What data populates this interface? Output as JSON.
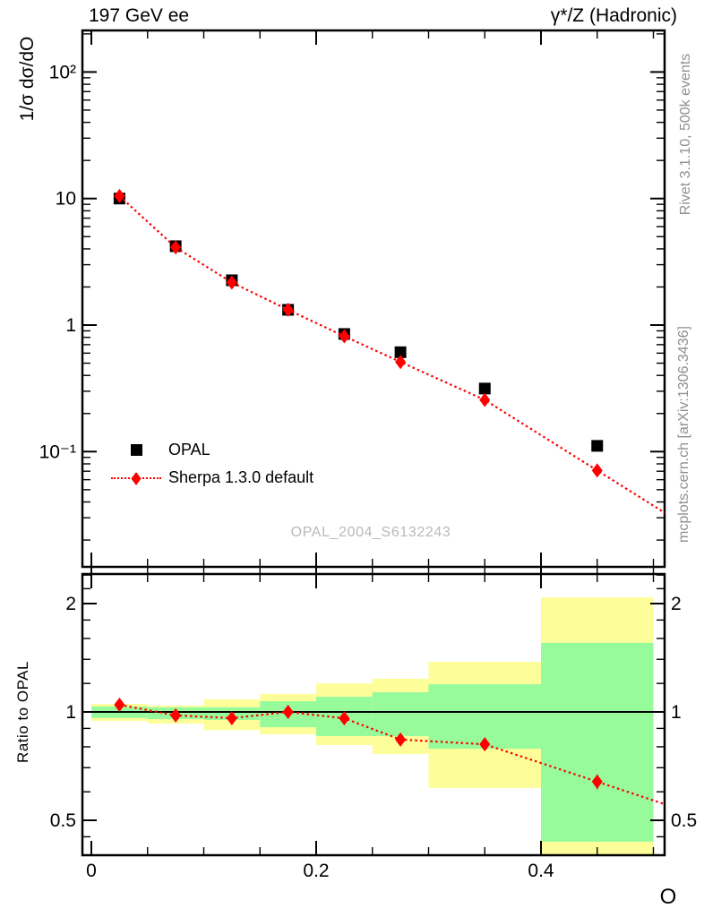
{
  "header": {
    "left": "197 GeV ee",
    "right": "γ*/Z (Hadronic)"
  },
  "side_labels": {
    "rivet": "Rivet 3.1.10,  500k events",
    "mcplots": "mcplots.cern.ch [arXiv:1306.3436]"
  },
  "watermark": "OPAL_2004_S6132243",
  "axis_titles": {
    "main_y": "1/σ dσ/dO",
    "ratio_y": "Ratio to OPAL",
    "x": "O"
  },
  "legend": {
    "opal": "OPAL",
    "sherpa": "Sherpa 1.3.0 default"
  },
  "colors": {
    "data": "#000000",
    "mc": "#ff0000",
    "yellow_band": "#fdfd9a",
    "green_band": "#97fb9c",
    "gray_text": "#8f8f8f",
    "watermark": "#b9b9b9"
  },
  "chart_data": {
    "main": {
      "type": "scatter",
      "title": "197 GeV ee — γ*/Z (Hadronic)",
      "xlabel": "O",
      "ylabel": "1/σ dσ/dO",
      "xscale": "linear",
      "yscale": "log",
      "xlim": [
        -0.008,
        0.51
      ],
      "ylim": [
        0.0123,
        213
      ],
      "grid": false,
      "legend_position": "middle-left",
      "bin_edges": [
        0,
        0.05,
        0.1,
        0.15,
        0.2,
        0.25,
        0.3,
        0.4,
        0.5
      ],
      "x": [
        0.025,
        0.075,
        0.125,
        0.175,
        0.225,
        0.275,
        0.35,
        0.45
      ],
      "x_ticks_major": {
        "values": [
          0,
          0.2,
          0.4
        ],
        "labels": [
          "0",
          "0.2",
          "0.4"
        ]
      },
      "x_ticks_minor": [
        0.05,
        0.1,
        0.15,
        0.25,
        0.3,
        0.35,
        0.45,
        0.5
      ],
      "y_ticks_major": {
        "values": [
          100,
          10,
          1,
          0.1
        ],
        "labels": [
          "10²",
          "10",
          "1",
          "10⁻¹"
        ]
      },
      "series": [
        {
          "name": "OPAL",
          "marker": "square",
          "color": "#000000",
          "values": [
            10.0,
            4.2,
            2.26,
            1.32,
            0.85,
            0.61,
            0.315,
            0.111
          ],
          "yerr": [
            0.5,
            0.16,
            0.09,
            0.05,
            0.035,
            0.025,
            0.015,
            0.006
          ]
        },
        {
          "name": "Sherpa 1.3.0 default",
          "marker": "diamond",
          "color": "#ff0000",
          "line": "dotted",
          "values": [
            10.47,
            4.11,
            2.17,
            1.32,
            0.816,
            0.511,
            0.256,
            0.071
          ],
          "yerr": [
            0.25,
            0.08,
            0.045,
            0.028,
            0.02,
            0.013,
            0.008,
            0.0035
          ]
        }
      ]
    },
    "ratio": {
      "type": "line",
      "ylabel": "Ratio to OPAL",
      "yscale": "log",
      "ylim": [
        0.4,
        2.42
      ],
      "y_ticks_major": {
        "values": [
          0.5,
          1,
          2
        ],
        "labels": [
          "0.5",
          "1",
          "2"
        ]
      },
      "y_ticks_minor": [
        0.45,
        0.6,
        0.7,
        0.8,
        0.9,
        1.2,
        1.4,
        1.6,
        1.8,
        2.2,
        2.4
      ],
      "reference_line": 1,
      "series": [
        {
          "name": "Sherpa 1.3.0 default / OPAL",
          "color": "#ff0000",
          "line": "dotted",
          "marker": "diamond",
          "values": [
            1.047,
            0.978,
            0.961,
            1.0,
            0.96,
            0.838,
            0.813,
            0.64
          ],
          "yerr": [
            0.02,
            0.015,
            0.015,
            0.015,
            0.015,
            0.018,
            0.018,
            0.03
          ]
        }
      ],
      "bands": {
        "yellow": {
          "lo": [
            0.944,
            0.928,
            0.89,
            0.867,
            0.809,
            0.764,
            0.615,
            0.4
          ],
          "hi": [
            1.053,
            1.041,
            1.084,
            1.122,
            1.2,
            1.236,
            1.378,
            2.081
          ]
        },
        "green": {
          "lo": [
            0.962,
            0.955,
            0.95,
            0.907,
            0.857,
            0.857,
            0.79,
            0.436
          ],
          "hi": [
            1.035,
            1.03,
            1.03,
            1.071,
            1.102,
            1.134,
            1.194,
            1.555
          ]
        }
      }
    }
  }
}
